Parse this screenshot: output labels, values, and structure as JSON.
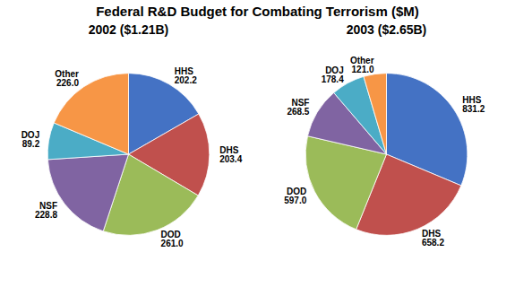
{
  "title": "Federal R&D Budget for Combating Terrorism ($M)",
  "chart_data": [
    {
      "type": "pie",
      "title": "2002 ($1.21B)",
      "categories": [
        "HHS",
        "DHS",
        "DOD",
        "NSF",
        "DOJ",
        "Other"
      ],
      "values": [
        202.2,
        203.4,
        261.0,
        228.8,
        89.2,
        226.0
      ],
      "value_labels": [
        "202.2",
        "203.4",
        "261.0",
        "228.8",
        "89.2",
        "226.0"
      ],
      "colors": [
        "#4472C4",
        "#C0504D",
        "#9BBB59",
        "#8064A2",
        "#4BACC6",
        "#F79646"
      ],
      "data_labels": true
    },
    {
      "type": "pie",
      "title": "2003 ($2.65B)",
      "categories": [
        "HHS",
        "DHS",
        "DOD",
        "NSF",
        "DOJ",
        "Other"
      ],
      "values": [
        831.2,
        658.2,
        597.0,
        268.5,
        178.4,
        121.0
      ],
      "value_labels": [
        "831.2",
        "658.2",
        "597.0",
        "268.5",
        "178.4",
        "121.0"
      ],
      "colors": [
        "#4472C4",
        "#C0504D",
        "#9BBB59",
        "#8064A2",
        "#4BACC6",
        "#F79646"
      ],
      "data_labels": true
    }
  ]
}
